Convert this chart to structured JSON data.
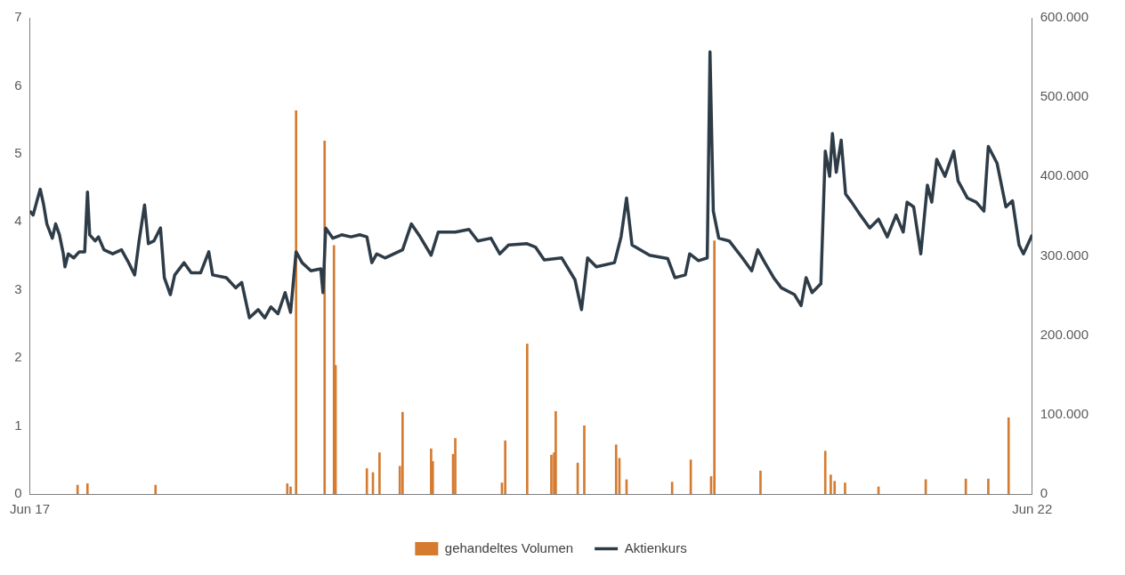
{
  "chart_data": {
    "type": "line",
    "xlim": [
      "2017-06-01",
      "2022-06-01"
    ],
    "xticks": [
      {
        "value": "2017-06-01",
        "label": "Jun 17"
      },
      {
        "value": "2022-06-01",
        "label": "Jun 22"
      }
    ],
    "ylim": [
      0,
      7
    ],
    "yticks": [
      0,
      1,
      2,
      3,
      4,
      5,
      6,
      7
    ],
    "y2lim": [
      0,
      600000
    ],
    "y2ticks": [
      0,
      {
        "value": 100000,
        "label": "100.000"
      },
      {
        "value": 200000,
        "label": "200.000"
      },
      {
        "value": 300000,
        "label": "300.000"
      },
      {
        "value": 400000,
        "label": "400.000"
      },
      {
        "value": 500000,
        "label": "500.000"
      },
      {
        "value": 600000,
        "label": "600.000"
      }
    ],
    "grid": false,
    "legend": "bottom",
    "marker": "none",
    "series": [
      {
        "name": "gehandeltes Volumen",
        "type": "bar",
        "axis": "y2",
        "color": "#d57b30",
        "x": [
          "2017-08-27",
          "2017-09-14",
          "2018-01-16",
          "2018-09-13",
          "2018-09-19",
          "2018-09-29",
          "2018-11-20",
          "2018-12-07",
          "2018-12-10",
          "2019-02-05",
          "2019-02-16",
          "2019-02-28",
          "2019-04-06",
          "2019-04-11",
          "2019-06-02",
          "2019-06-05",
          "2019-07-12",
          "2019-07-16",
          "2019-10-09",
          "2019-10-15",
          "2019-11-24",
          "2020-01-07",
          "2020-01-12",
          "2020-01-15",
          "2020-02-24",
          "2020-03-07",
          "2020-05-04",
          "2020-05-10",
          "2020-05-23",
          "2020-08-14",
          "2020-09-17",
          "2020-10-24",
          "2020-10-30",
          "2021-01-22",
          "2021-05-20",
          "2021-05-30",
          "2021-06-06",
          "2021-06-25",
          "2021-08-25",
          "2021-11-19",
          "2022-01-31",
          "2022-03-13",
          "2022-04-19"
        ],
        "values": [
          11000,
          13000,
          11000,
          13000,
          9000,
          483000,
          445000,
          313000,
          162000,
          32000,
          27000,
          52000,
          35000,
          103000,
          57000,
          41000,
          50000,
          70000,
          14000,
          67000,
          189000,
          49000,
          52000,
          104000,
          39000,
          86000,
          62000,
          45000,
          18000,
          15000,
          43000,
          22000,
          319000,
          29000,
          54000,
          24000,
          16000,
          14000,
          9000,
          18000,
          19000,
          19000,
          96000
        ]
      },
      {
        "name": "Aktienkurs",
        "color": "#2e3c48",
        "x": [
          "2017-06-01",
          "2017-06-07",
          "2017-06-14",
          "2017-06-20",
          "2017-06-26",
          "2017-07-02",
          "2017-07-12",
          "2017-07-18",
          "2017-07-25",
          "2017-08-01",
          "2017-08-04",
          "2017-08-10",
          "2017-08-20",
          "2017-08-30",
          "2017-09-09",
          "2017-09-14",
          "2017-09-18",
          "2017-09-28",
          "2017-10-04",
          "2017-10-14",
          "2017-10-30",
          "2017-11-15",
          "2017-11-28",
          "2017-12-09",
          "2017-12-17",
          "2017-12-27",
          "2018-01-03",
          "2018-01-13",
          "2018-01-25",
          "2018-02-01",
          "2018-02-12",
          "2018-02-20",
          "2018-03-09",
          "2018-03-22",
          "2018-04-08",
          "2018-04-23",
          "2018-04-30",
          "2018-05-25",
          "2018-06-11",
          "2018-06-22",
          "2018-07-06",
          "2018-07-22",
          "2018-08-03",
          "2018-08-14",
          "2018-08-27",
          "2018-09-09",
          "2018-09-19",
          "2018-09-29",
          "2018-10-10",
          "2018-10-26",
          "2018-11-13",
          "2018-11-17",
          "2018-11-22",
          "2018-12-05",
          "2018-12-21",
          "2019-01-07",
          "2019-01-23",
          "2019-02-05",
          "2019-02-14",
          "2019-02-23",
          "2019-03-10",
          "2019-04-11",
          "2019-04-27",
          "2019-05-13",
          "2019-06-02",
          "2019-06-15",
          "2019-07-16",
          "2019-08-10",
          "2019-08-26",
          "2019-09-19",
          "2019-10-05",
          "2019-10-21",
          "2019-11-23",
          "2019-12-09",
          "2019-12-25",
          "2020-01-26",
          "2020-02-19",
          "2020-03-02",
          "2020-03-13",
          "2020-03-29",
          "2020-05-01",
          "2020-05-13",
          "2020-05-23",
          "2020-06-02",
          "2020-07-04",
          "2020-08-06",
          "2020-08-19",
          "2020-09-07",
          "2020-09-15",
          "2020-10-01",
          "2020-10-17",
          "2020-10-22",
          "2020-10-28",
          "2020-11-07",
          "2020-11-26",
          "2020-12-20",
          "2021-01-06",
          "2021-01-17",
          "2021-01-30",
          "2021-02-15",
          "2021-03-01",
          "2021-03-25",
          "2021-04-06",
          "2021-04-15",
          "2021-04-26",
          "2021-05-12",
          "2021-05-20",
          "2021-05-28",
          "2021-06-02",
          "2021-06-09",
          "2021-06-18",
          "2021-06-26",
          "2021-07-07",
          "2021-07-23",
          "2021-08-09",
          "2021-08-25",
          "2021-09-10",
          "2021-09-26",
          "2021-10-09",
          "2021-10-16",
          "2021-10-28",
          "2021-11-10",
          "2021-11-22",
          "2021-11-30",
          "2021-12-09",
          "2021-12-24",
          "2022-01-09",
          "2022-01-17",
          "2022-02-03",
          "2022-02-19",
          "2022-03-05",
          "2022-03-13",
          "2022-03-29",
          "2022-04-14",
          "2022-04-26",
          "2022-05-08",
          "2022-05-16",
          "2022-06-01"
        ],
        "values": [
          4.16,
          4.1,
          4.31,
          4.48,
          4.26,
          3.97,
          3.76,
          3.97,
          3.81,
          3.53,
          3.34,
          3.53,
          3.47,
          3.56,
          3.56,
          4.44,
          3.81,
          3.72,
          3.78,
          3.59,
          3.53,
          3.59,
          3.4,
          3.22,
          3.72,
          4.25,
          3.68,
          3.72,
          3.91,
          3.18,
          2.93,
          3.22,
          3.4,
          3.25,
          3.25,
          3.56,
          3.22,
          3.18,
          3.03,
          3.11,
          2.59,
          2.71,
          2.59,
          2.75,
          2.65,
          2.96,
          2.67,
          3.56,
          3.4,
          3.28,
          3.31,
          2.96,
          3.91,
          3.76,
          3.81,
          3.78,
          3.81,
          3.78,
          3.4,
          3.53,
          3.47,
          3.59,
          3.97,
          3.78,
          3.51,
          3.85,
          3.85,
          3.89,
          3.72,
          3.76,
          3.53,
          3.66,
          3.68,
          3.63,
          3.44,
          3.47,
          3.15,
          2.71,
          3.47,
          3.34,
          3.4,
          3.78,
          4.35,
          3.66,
          3.51,
          3.46,
          3.18,
          3.22,
          3.53,
          3.43,
          3.47,
          6.5,
          4.16,
          3.76,
          3.72,
          3.47,
          3.28,
          3.59,
          3.4,
          3.18,
          3.03,
          2.93,
          2.77,
          3.18,
          2.96,
          3.09,
          5.04,
          4.67,
          5.3,
          4.73,
          5.2,
          4.41,
          4.29,
          4.1,
          3.91,
          4.04,
          3.78,
          4.1,
          3.85,
          4.29,
          4.22,
          3.53,
          4.54,
          4.29,
          4.92,
          4.67,
          5.04,
          4.6,
          4.35,
          4.29,
          4.16,
          5.11,
          4.86,
          4.22,
          4.31,
          3.66,
          3.53,
          3.81
        ]
      }
    ]
  }
}
